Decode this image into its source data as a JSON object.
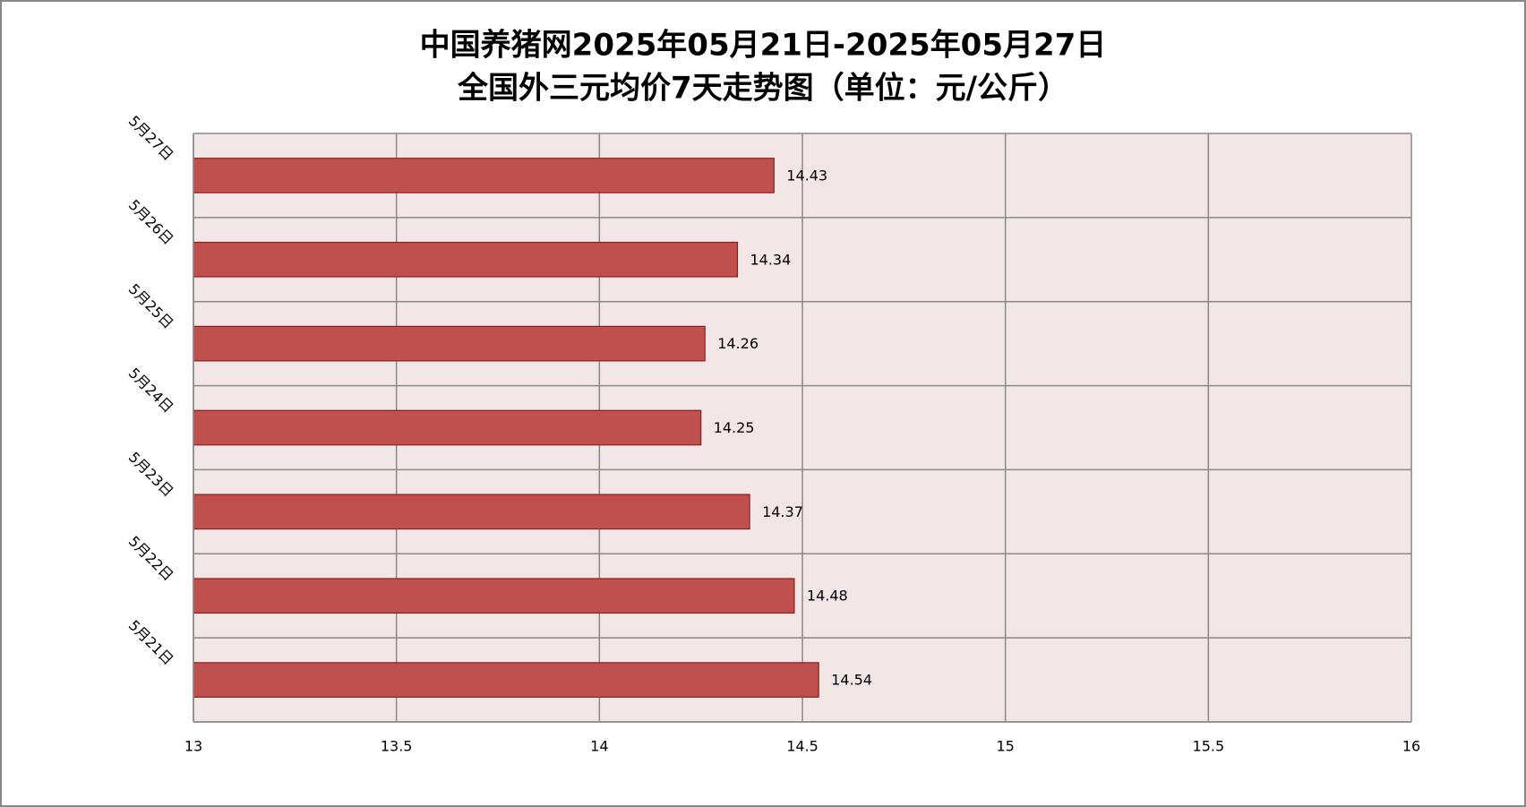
{
  "chart_data": {
    "type": "bar",
    "orientation": "horizontal",
    "title": "中国养猪网2025年05月21日-2025年05月27日",
    "subtitle": "全国外三元均价7天走势图（单位：元/公斤）",
    "categories": [
      "5月21日",
      "5月22日",
      "5月23日",
      "5月24日",
      "5月25日",
      "5月26日",
      "5月27日"
    ],
    "values": [
      14.54,
      14.48,
      14.37,
      14.25,
      14.26,
      14.34,
      14.43
    ],
    "color": "#c0504d",
    "xlim": [
      13,
      16
    ],
    "xticks": [
      13,
      13.5,
      14,
      14.5,
      15,
      15.5,
      16
    ],
    "grid": true
  }
}
